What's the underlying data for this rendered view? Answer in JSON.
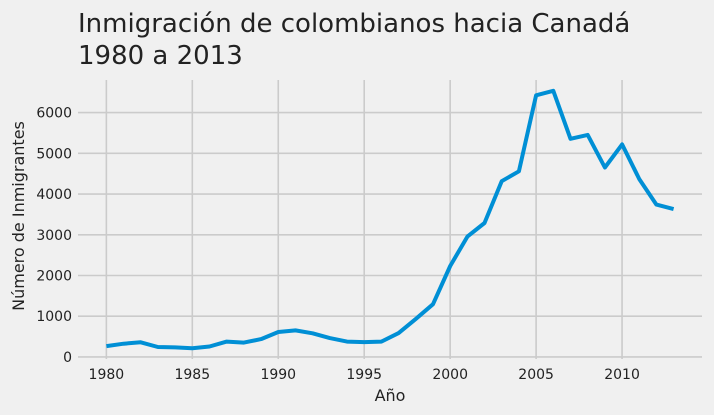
{
  "chart_data": {
    "type": "line",
    "title": [
      "Inmigración de colombianos hacia Canadá",
      "1980 a 2013"
    ],
    "xlabel": "Año",
    "ylabel": "Número de Inmigrantes",
    "x": [
      1980,
      1981,
      1982,
      1983,
      1984,
      1985,
      1986,
      1987,
      1988,
      1989,
      1990,
      1991,
      1992,
      1993,
      1994,
      1995,
      1996,
      1997,
      1998,
      1999,
      2000,
      2001,
      2002,
      2003,
      2004,
      2005,
      2006,
      2007,
      2008,
      2009,
      2010,
      2011,
      2012,
      2013
    ],
    "series": [
      {
        "values": [
          266,
          326,
          360,
          244,
          235,
          214,
          257,
          376,
          352,
          439,
          614,
          652,
          581,
          462,
          376,
          364,
          376,
          587,
          934,
          1296,
          2234,
          2956,
          3288,
          4315,
          4558,
          6424,
          6535,
          5357,
          5452,
          4652,
          5218,
          4366,
          3741,
          3631
        ],
        "color": "#008fd5"
      }
    ],
    "xticks": [
      1980,
      1985,
      1990,
      1995,
      2000,
      2005,
      2010
    ],
    "yticks": [
      0,
      1000,
      2000,
      3000,
      4000,
      5000,
      6000
    ],
    "xlim": [
      1978.35,
      2014.65
    ],
    "ylim": [
      -50,
      6800
    ],
    "grid": true,
    "legend": "none",
    "style": "fivethirtyeight"
  }
}
